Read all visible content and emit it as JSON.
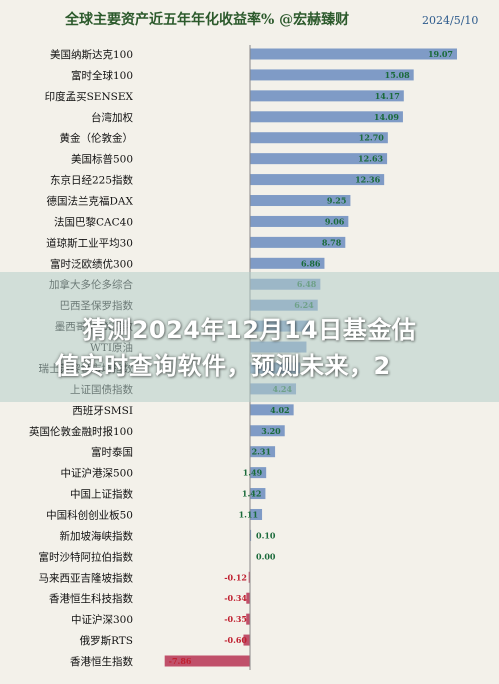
{
  "headline": {
    "line1": "猜测2024年12月14日基金估",
    "line2": "值实时查询软件，预测未来，2"
  },
  "colors": {
    "bar_positive": "#7f9bc6",
    "bar_negative": "#c0506a",
    "label_positive": "#1a6a3a",
    "label_negative": "#c02030",
    "title": "#2c5a2c",
    "date": "#2c5a8c"
  },
  "chart_data": {
    "type": "bar",
    "orientation": "horizontal",
    "title": "全球主要资产近五年年化收益率%  @宏赫臻财",
    "date": "2024/5/10",
    "categories": [
      "美国纳斯达克100",
      "富时全球100",
      "印度孟买SENSEX",
      "台湾加权",
      "黄金（伦敦金）",
      "美国标普500",
      "东京日经225指数",
      "德国法兰克福DAX",
      "法国巴黎CAC40",
      "道琼斯工业平均30",
      "富时泛欧绩优300",
      "加拿大多伦多综合",
      "巴西圣保罗指数",
      "墨西哥MXX指数",
      "WTI原油",
      "瑞士苏黎世市场指数",
      "上证国债指数",
      "西班牙SMSI",
      "英国伦敦金融时报100",
      "富时泰国",
      "中证沪港深500",
      "中国上证指数",
      "中国科创创业板50",
      "新加坡海峡指数",
      "富时沙特阿拉伯指数",
      "马来西亚吉隆坡指数",
      "香港恒生科技指数",
      "中证沪深300",
      "俄罗斯RTS",
      "香港恒生指数"
    ],
    "values": [
      19.07,
      15.08,
      14.17,
      14.09,
      12.7,
      12.63,
      12.36,
      9.25,
      9.06,
      8.78,
      6.86,
      6.48,
      6.24,
      5.8,
      5.2,
      4.6,
      4.24,
      4.02,
      3.2,
      2.31,
      1.49,
      1.42,
      1.11,
      0.1,
      0.0,
      -0.12,
      -0.34,
      -0.35,
      -0.6,
      -7.86
    ],
    "value_labels": [
      "19.07",
      "15.08",
      "14.17",
      "14.09",
      "12.70",
      "12.63",
      "12.36",
      "9.25",
      "9.06",
      "8.78",
      "6.86",
      "6.48",
      "6.24",
      "",
      "",
      "",
      "4.24",
      "4.02",
      "3.20",
      "2.31",
      "1.49",
      "1.42",
      "1.11",
      "0.10",
      "0.00",
      "-0.12",
      "-0.34",
      "-0.35",
      "-0.60",
      "-7.86"
    ],
    "xlim": [
      -8.5,
      20.5
    ]
  }
}
